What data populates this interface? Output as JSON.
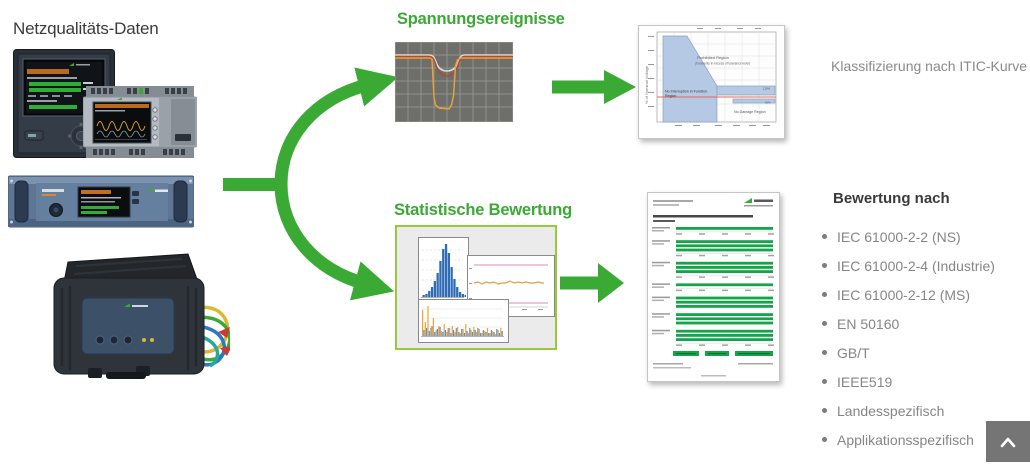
{
  "colors": {
    "accent_green": "#3aaa35",
    "report_bar_green": "#15a44a",
    "stats_border_green": "#97c83f",
    "gray_text": "#8a8a8a",
    "dark_text": "#3b3b3b",
    "chart_bg_gray": "#6e6e6a"
  },
  "left": {
    "title": "Netzqualitäts-Daten"
  },
  "flow": {
    "voltage_events_title": "Spannungsereignisse",
    "statistics_title": "Statistische Bewertung"
  },
  "itic": {
    "caption": "Klassifizierung nach ITIC-Kurve",
    "ylabel": "% of Nominal Voltage",
    "prohibited_label": "Prohibited Region",
    "prohibited_sub": "(transients in excess of tolerance level)",
    "no_interruption_label_1": "No Interruption in Function",
    "no_interruption_label_2": "Region",
    "no_damage_label": "No Damage Region",
    "band_upper": "110%",
    "band_lower": "90%"
  },
  "standards": {
    "title": "Bewertung nach",
    "items": [
      "IEC 61000-2-2 (NS)",
      "IEC 61000-2-4 (Industrie)",
      "IEC 61000-2-12 (MS)",
      "EN 50160",
      "GB/T",
      "IEEE519",
      "Landesspezifisch",
      "Applikationsspezifisch"
    ]
  },
  "mini_charts": {
    "histogram_values": [
      2,
      3,
      6,
      10,
      16,
      24,
      36,
      48,
      53,
      44,
      30,
      18,
      10,
      5,
      3,
      2
    ],
    "harmonics_orange": [
      26,
      14,
      30,
      8,
      18,
      6,
      10,
      5,
      12,
      4,
      8,
      10,
      4,
      9,
      3,
      7,
      12,
      3,
      6,
      9,
      4,
      7,
      3,
      5,
      8,
      3,
      5,
      2,
      6,
      8
    ],
    "harmonics_blue": [
      6,
      8,
      5,
      10,
      4,
      7,
      9,
      4,
      6,
      8,
      3,
      6,
      8,
      4,
      7,
      3,
      5,
      8,
      4,
      6,
      8,
      3,
      6,
      4,
      3,
      6,
      4,
      7,
      3,
      5
    ]
  },
  "report": {
    "bar_color": "#15a44a",
    "groups": [
      {
        "bars": 1
      },
      {
        "bars": 3
      },
      {
        "bars": 3
      },
      {
        "bars": 1
      },
      {
        "bars": 3,
        "ticks": false
      },
      {
        "bars": 3,
        "ticks": false
      },
      {
        "bars": 3
      }
    ]
  },
  "icons": {
    "scroll_top": "chevron-up"
  }
}
